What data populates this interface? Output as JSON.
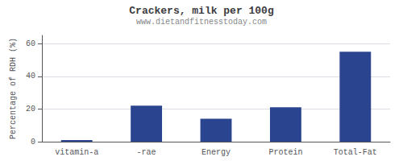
{
  "chart_data": {
    "type": "bar",
    "title": "Crackers, milk per 100g",
    "subtitle": "www.dietandfitnesstoday.com",
    "categories": [
      "vitamin-a",
      "-rae",
      "Energy",
      "Protein",
      "Total-Fat"
    ],
    "values": [
      1.0,
      22.0,
      14.0,
      21.0,
      55.0
    ],
    "color": "#2b4490",
    "ylabel": "Percentage of RDH (%)",
    "ylim": [
      0,
      65
    ],
    "yticks": [
      0,
      20,
      40,
      60
    ],
    "grid": true
  }
}
